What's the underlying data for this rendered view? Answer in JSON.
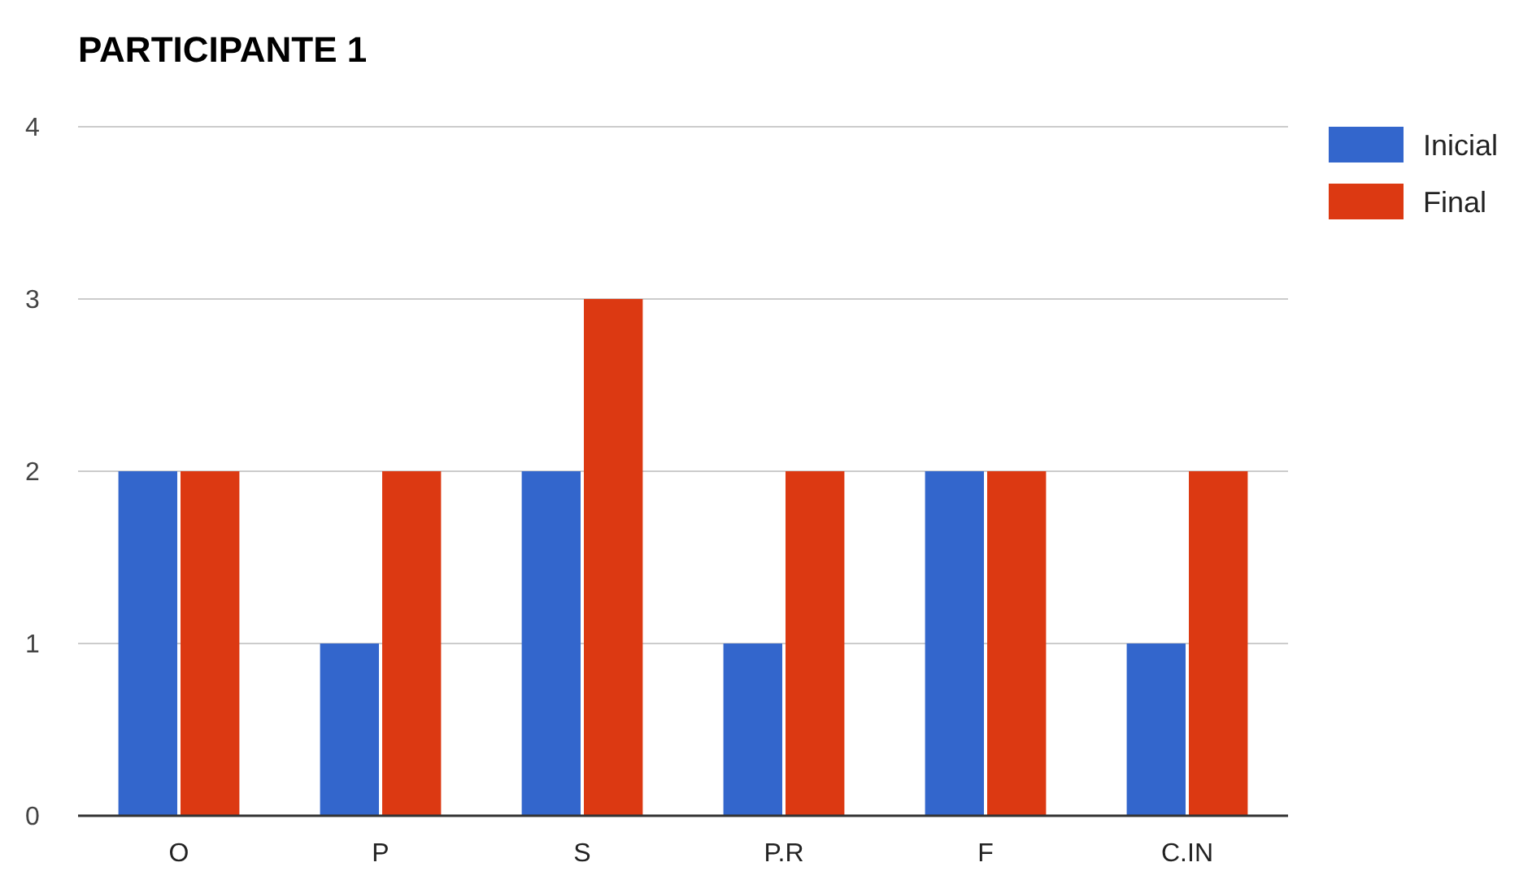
{
  "chart_data": {
    "type": "bar",
    "title": "PARTICIPANTE 1",
    "categories": [
      "O",
      "P",
      "S",
      "P.R",
      "F",
      "C.IN"
    ],
    "series": [
      {
        "name": "Inicial",
        "color": "#3366cc",
        "values": [
          2,
          1,
          2,
          1,
          2,
          1
        ]
      },
      {
        "name": "Final",
        "color": "#dc3912",
        "values": [
          2,
          2,
          3,
          2,
          2,
          2
        ]
      }
    ],
    "ylim": [
      0,
      4
    ],
    "yticks": [
      0,
      1,
      2,
      3,
      4
    ],
    "grid": "y",
    "legend": "top right"
  }
}
